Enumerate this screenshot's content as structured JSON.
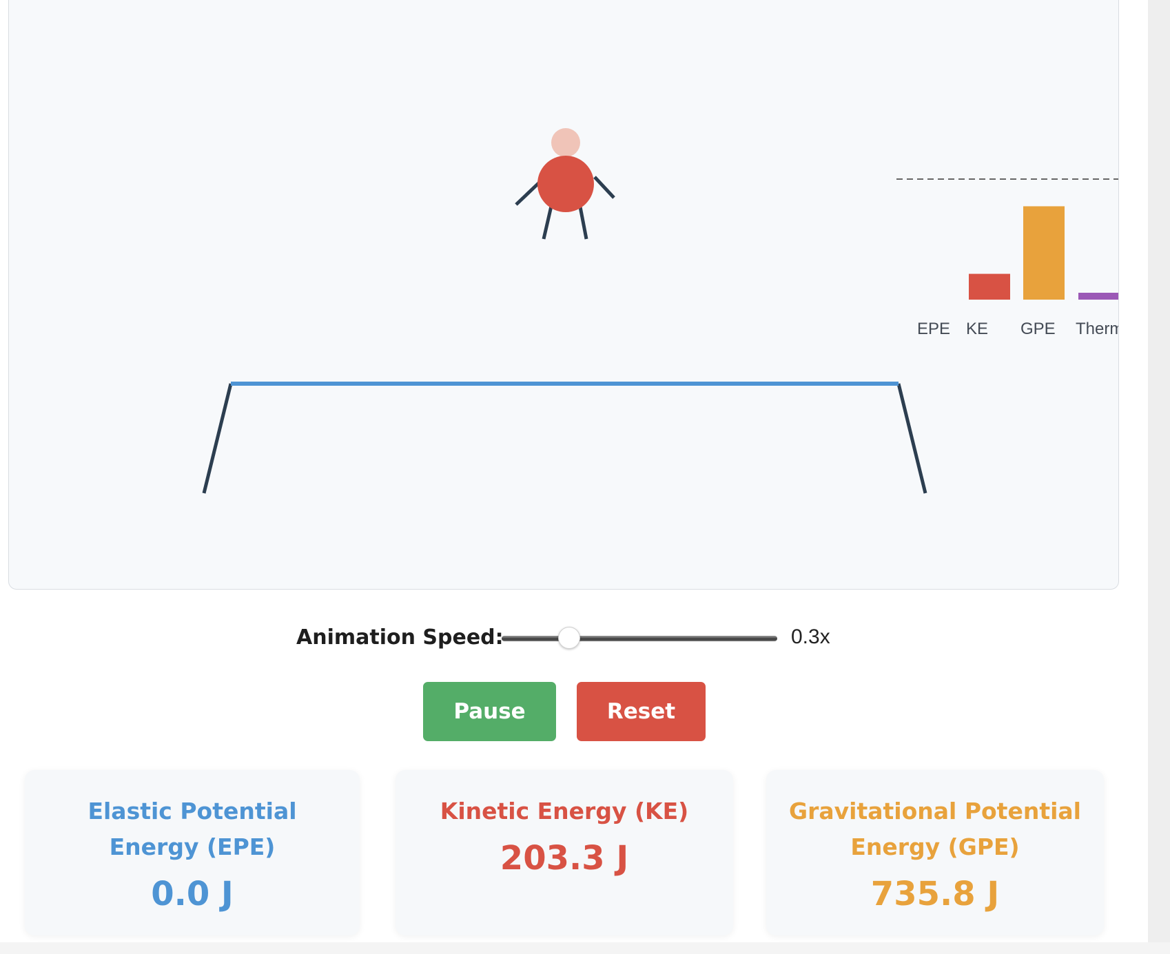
{
  "energy_bars": {
    "labels": [
      "EPE",
      "KE",
      "GPE",
      "Therm"
    ],
    "values": [
      0.0,
      203.3,
      735.8,
      20
    ],
    "colors": [
      "#4e94d4",
      "#d85244",
      "#e8a23c",
      "#9b59b6"
    ]
  },
  "controls": {
    "speed_label": "Animation Speed:",
    "speed_value": "0.3x",
    "speed_fraction": 0.245,
    "pause_label": "Pause",
    "reset_label": "Reset"
  },
  "cards": {
    "epe": {
      "title": "Elastic Potential Energy (EPE)",
      "value": "0.0 J",
      "color": "#4e94d4"
    },
    "ke": {
      "title": "Kinetic Energy (KE)",
      "value": "203.3 J",
      "color": "#d85244"
    },
    "gpe": {
      "title": "Gravitational Potential Energy (GPE)",
      "value": "735.8 J",
      "color": "#e8a23c"
    }
  },
  "colors": {
    "trampoline_bed": "#4e94d4",
    "frame": "#2c3e50",
    "body": "#d85244",
    "head": "#f0c4b8",
    "limbs": "#2c3e50"
  }
}
